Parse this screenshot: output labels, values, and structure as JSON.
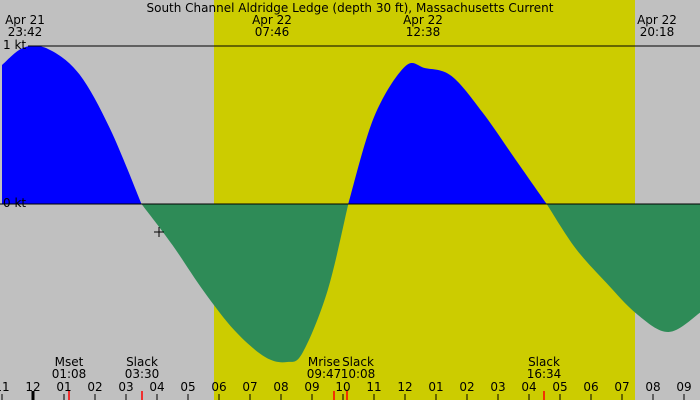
{
  "chart_data": {
    "type": "area",
    "title": "South Channel Aldridge Ledge (depth 30 ft), Massachusetts Current",
    "y_unit": "kt",
    "y_tick_labels": [
      "1 kt",
      "0 kt"
    ],
    "ylim": [
      -1.15,
      1.33
    ],
    "xlim": [
      -1.0,
      22.75
    ],
    "day_window": {
      "start": {
        "date": "Apr 22",
        "time": "07:46"
      },
      "end": {
        "date": "Apr 22",
        "time": "20:18"
      }
    },
    "top_labels": [
      {
        "date": "Apr 21",
        "time": "23:42"
      },
      {
        "date": "Apr 22",
        "time": "07:46"
      },
      {
        "date": "Apr 22",
        "time": "12:38"
      },
      {
        "date": "Apr 22",
        "time": "20:18"
      }
    ],
    "series": [
      {
        "values_x": [
          -1.0,
          -0.3,
          0.5,
          1.5,
          2.5,
          3.5
        ],
        "values_y": [
          0.88,
          0.99,
          0.98,
          0.82,
          0.47,
          0.0
        ]
      },
      {
        "values_x": [
          3.5,
          4.5,
          5.5,
          6.5,
          7.5,
          8.2,
          8.7,
          9.5,
          10.17
        ],
        "values_y": [
          0.0,
          -0.26,
          -0.55,
          -0.8,
          -0.97,
          -1.0,
          -0.94,
          -0.55,
          0.0
        ]
      },
      {
        "values_x": [
          10.17,
          11.0,
          12.0,
          12.65,
          13.5,
          14.5,
          15.5,
          16.57
        ],
        "values_y": [
          0.0,
          0.55,
          0.87,
          0.86,
          0.81,
          0.58,
          0.3,
          0.0
        ]
      },
      {
        "values_x": [
          16.57,
          17.5,
          18.5,
          19.5,
          20.5,
          21.5,
          22.0,
          22.75
        ],
        "values_y": [
          0.0,
          -0.28,
          -0.5,
          -0.7,
          -0.81,
          -0.69,
          -0.59,
          -0.45
        ]
      }
    ],
    "events": [
      {
        "label": "Mset",
        "time": "01:08"
      },
      {
        "label": "Slack",
        "time": "03:30"
      },
      {
        "label": "Mrise",
        "time": "09:47"
      },
      {
        "label": "Slack",
        "time": "10:08"
      },
      {
        "label": "Slack",
        "time": "16:34"
      }
    ],
    "hour_ticks": [
      "11",
      "12",
      "01",
      "02",
      "03",
      "04",
      "05",
      "06",
      "07",
      "08",
      "09",
      "10",
      "11",
      "12",
      "01",
      "02",
      "03",
      "04",
      "05",
      "06",
      "07",
      "08",
      "09"
    ],
    "colors": {
      "background": "#c0c0c0",
      "day": "#cccc00",
      "flood": "#0000ff",
      "ebb": "#2e8b57",
      "red_marker": "#ff0000",
      "black_marker": "#000000"
    },
    "cursor_marker": {
      "x": 4.0,
      "y": -0.23
    }
  }
}
